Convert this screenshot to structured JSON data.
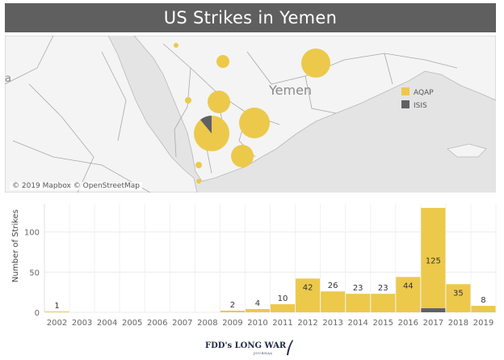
{
  "title": "US Strikes in Yemen",
  "map": {
    "country_label": "Yemen",
    "partial_label": "a",
    "attribution": "© 2019 Mapbox © OpenStreetMap",
    "legend": [
      {
        "name": "AQAP",
        "color": "#ecc94b"
      },
      {
        "name": "ISIS",
        "color": "#5f6064"
      }
    ]
  },
  "chart_data": {
    "type": "bar",
    "ylabel": "Number of Strikes",
    "xlabel": "",
    "ylim": [
      0,
      135
    ],
    "yticks": [
      0,
      50,
      100
    ],
    "categories": [
      "2002",
      "2003",
      "2004",
      "2005",
      "2006",
      "2007",
      "2008",
      "2009",
      "2010",
      "2011",
      "2012",
      "2013",
      "2014",
      "2015",
      "2016",
      "2017",
      "2018",
      "2019"
    ],
    "series": [
      {
        "name": "AQAP",
        "color": "#ecc94b",
        "values": [
          1,
          0,
          0,
          0,
          0,
          0,
          0,
          2,
          4,
          10,
          42,
          26,
          23,
          23,
          44,
          125,
          35,
          8
        ]
      },
      {
        "name": "ISIS",
        "color": "#5f6064",
        "values": [
          0,
          0,
          0,
          0,
          0,
          0,
          0,
          0,
          0,
          0,
          0,
          0,
          0,
          0,
          0,
          5,
          0,
          0
        ]
      }
    ],
    "data_labels": [
      "1",
      "",
      "",
      "",
      "",
      "",
      "",
      "2",
      "4",
      "10",
      "42",
      "26",
      "23",
      "23",
      "44",
      "125",
      "35",
      "8"
    ]
  },
  "footer": {
    "logo_text": "FDD's LONG WAR",
    "logo_sub": "JOURNAL"
  }
}
